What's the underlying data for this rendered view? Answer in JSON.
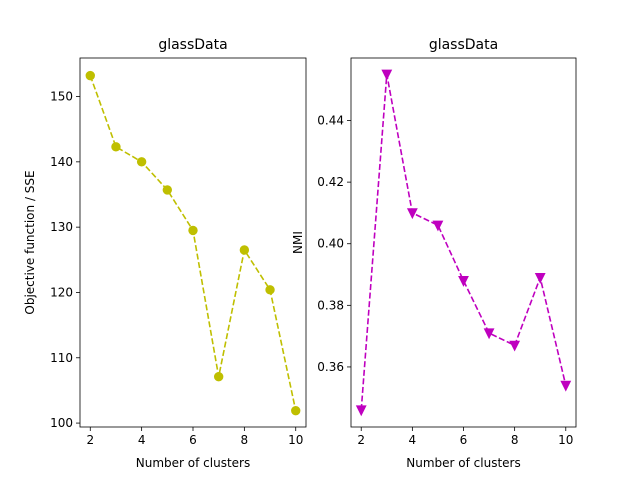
{
  "chart_data": [
    {
      "type": "line",
      "title": "glassData",
      "xlabel": "Number of clusters",
      "ylabel": "Objective function / SSE",
      "xlim": [
        1.6,
        10.4
      ],
      "ylim": [
        99.4,
        155.9
      ],
      "xticks": [
        2,
        4,
        6,
        8,
        10
      ],
      "yticks": [
        100,
        110,
        120,
        130,
        140,
        150
      ],
      "tick_decimals": 0,
      "series": [
        {
          "color": "#bfbf00",
          "marker": "circle",
          "linestyle": "dashed",
          "x": [
            2,
            3,
            4,
            5,
            6,
            7,
            8,
            9,
            10
          ],
          "y": [
            153.2,
            142.3,
            140.0,
            135.7,
            129.5,
            107.1,
            126.5,
            120.4,
            101.9
          ]
        }
      ]
    },
    {
      "type": "line",
      "title": "glassData",
      "xlabel": "Number of clusters",
      "ylabel": "NMI",
      "xlim": [
        1.6,
        10.4
      ],
      "ylim": [
        0.3405,
        0.4603
      ],
      "xticks": [
        2,
        4,
        6,
        8,
        10
      ],
      "yticks": [
        0.36,
        0.38,
        0.4,
        0.42,
        0.44
      ],
      "tick_decimals": 2,
      "series": [
        {
          "color": "#bf00bf",
          "marker": "triangle-down",
          "linestyle": "dashed",
          "x": [
            2,
            3,
            4,
            5,
            6,
            7,
            8,
            9,
            10
          ],
          "y": [
            0.346,
            0.455,
            0.41,
            0.406,
            0.388,
            0.371,
            0.367,
            0.389,
            0.354
          ]
        }
      ]
    }
  ]
}
